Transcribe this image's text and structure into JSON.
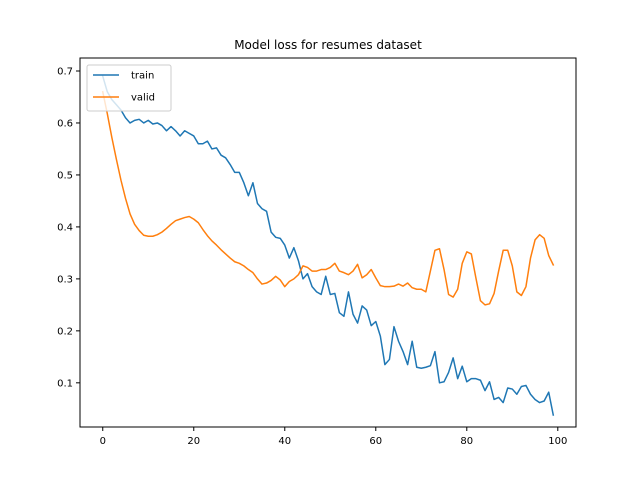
{
  "chart_data": {
    "type": "line",
    "title": "Model loss for resumes dataset",
    "xlabel": "",
    "ylabel": "",
    "xlim": [
      -5,
      104
    ],
    "ylim": [
      0.015,
      0.725
    ],
    "xticks": [
      0,
      20,
      40,
      60,
      80,
      100
    ],
    "yticks": [
      0.1,
      0.2,
      0.3,
      0.4,
      0.5,
      0.6,
      0.7
    ],
    "grid": false,
    "legend": "top-left",
    "series": [
      {
        "name": "train",
        "color": "#1f77b4",
        "values": [
          0.69,
          0.66,
          0.645,
          0.635,
          0.625,
          0.61,
          0.6,
          0.605,
          0.607,
          0.6,
          0.605,
          0.598,
          0.6,
          0.595,
          0.585,
          0.593,
          0.585,
          0.575,
          0.585,
          0.58,
          0.575,
          0.56,
          0.56,
          0.565,
          0.55,
          0.552,
          0.538,
          0.533,
          0.52,
          0.505,
          0.505,
          0.485,
          0.46,
          0.485,
          0.445,
          0.435,
          0.43,
          0.39,
          0.38,
          0.378,
          0.365,
          0.34,
          0.36,
          0.335,
          0.3,
          0.31,
          0.285,
          0.275,
          0.27,
          0.305,
          0.27,
          0.272,
          0.235,
          0.228,
          0.275,
          0.232,
          0.215,
          0.248,
          0.24,
          0.21,
          0.218,
          0.19,
          0.135,
          0.145,
          0.208,
          0.18,
          0.16,
          0.135,
          0.18,
          0.13,
          0.128,
          0.13,
          0.133,
          0.16,
          0.1,
          0.102,
          0.12,
          0.148,
          0.108,
          0.132,
          0.102,
          0.108,
          0.108,
          0.105,
          0.085,
          0.102,
          0.068,
          0.072,
          0.062,
          0.09,
          0.088,
          0.078,
          0.093,
          0.095,
          0.078,
          0.068,
          0.062,
          0.065,
          0.082,
          0.038
        ]
      },
      {
        "name": "valid",
        "color": "#ff7f0e",
        "values": [
          0.66,
          0.618,
          0.572,
          0.53,
          0.49,
          0.455,
          0.425,
          0.405,
          0.393,
          0.384,
          0.382,
          0.382,
          0.385,
          0.39,
          0.397,
          0.405,
          0.412,
          0.415,
          0.418,
          0.42,
          0.415,
          0.408,
          0.395,
          0.383,
          0.373,
          0.365,
          0.356,
          0.348,
          0.34,
          0.333,
          0.33,
          0.325,
          0.318,
          0.312,
          0.3,
          0.29,
          0.292,
          0.297,
          0.305,
          0.298,
          0.285,
          0.295,
          0.3,
          0.308,
          0.325,
          0.322,
          0.315,
          0.315,
          0.318,
          0.318,
          0.322,
          0.33,
          0.315,
          0.312,
          0.308,
          0.315,
          0.328,
          0.302,
          0.308,
          0.318,
          0.302,
          0.287,
          0.285,
          0.285,
          0.286,
          0.29,
          0.286,
          0.292,
          0.283,
          0.28,
          0.28,
          0.275,
          0.315,
          0.355,
          0.358,
          0.318,
          0.27,
          0.265,
          0.28,
          0.33,
          0.352,
          0.348,
          0.302,
          0.258,
          0.25,
          0.252,
          0.272,
          0.315,
          0.355,
          0.355,
          0.325,
          0.275,
          0.268,
          0.285,
          0.34,
          0.375,
          0.385,
          0.378,
          0.345,
          0.327
        ]
      }
    ]
  }
}
